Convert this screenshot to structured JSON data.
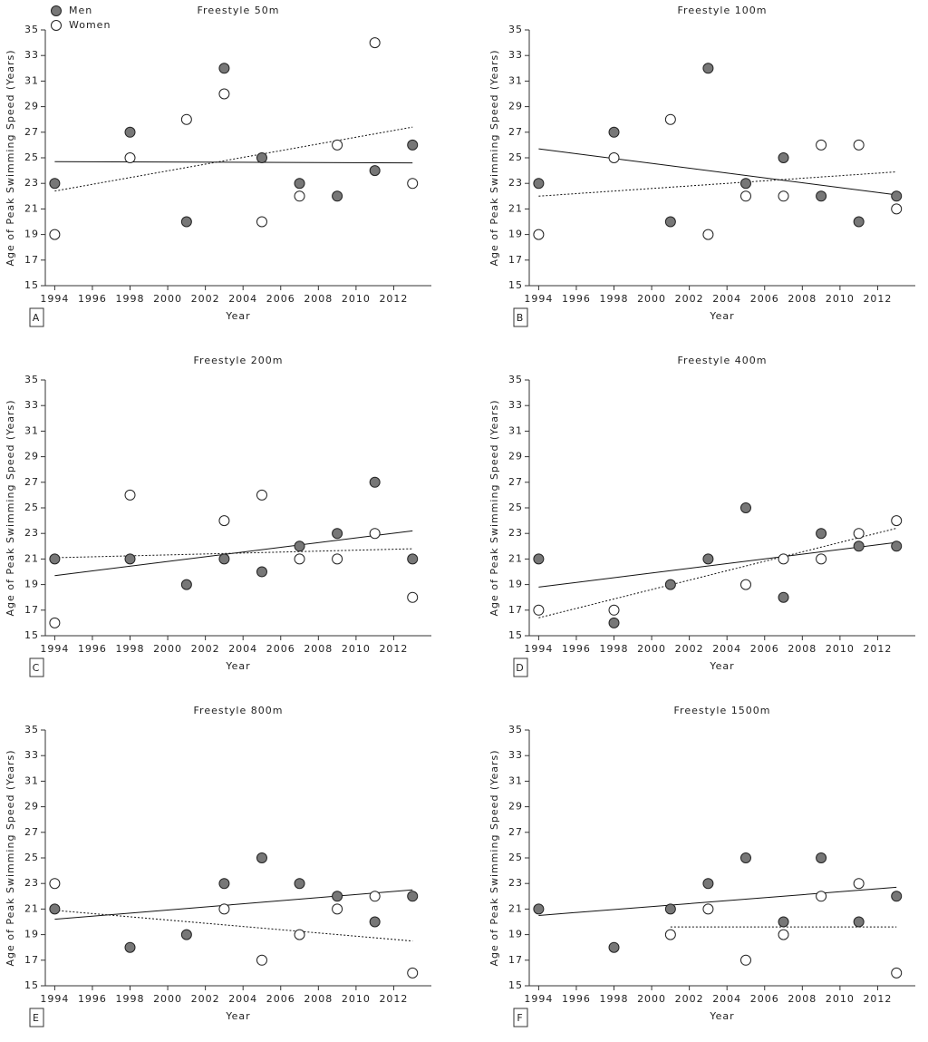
{
  "chart_data": [
    {
      "type": "scatter",
      "title": "Freestyle 50m",
      "panel_label": "A",
      "xlabel": "Year",
      "ylabel": "Age of Peak Swimming Speed (Years)",
      "x": [
        1994,
        1998,
        2001,
        2003,
        2005,
        2007,
        2009,
        2011,
        2013
      ],
      "xlim": [
        1993.5,
        2014
      ],
      "ylim": [
        15,
        35
      ],
      "xticks": [
        1994,
        1996,
        1998,
        2000,
        2002,
        2004,
        2006,
        2008,
        2010,
        2012
      ],
      "yticks": [
        15,
        17,
        19,
        21,
        23,
        25,
        27,
        29,
        31,
        33,
        35
      ],
      "legend": "top-left",
      "series": [
        {
          "name": "Men",
          "color": "#777777",
          "values": [
            23,
            27,
            20,
            32,
            25,
            23,
            22,
            24,
            26
          ],
          "dash": "solid",
          "trend": {
            "x": [
              1994,
              2013
            ],
            "values": [
              24.7,
              24.6
            ]
          }
        },
        {
          "name": "Women",
          "color": "#ffffff",
          "values": [
            19,
            25,
            28,
            30,
            20,
            22,
            26,
            34,
            23
          ],
          "dash": "dotted",
          "trend": {
            "x": [
              1994,
              2013
            ],
            "values": [
              22.4,
              27.4
            ]
          }
        }
      ]
    },
    {
      "type": "scatter",
      "title": "Freestyle 100m",
      "panel_label": "B",
      "xlabel": "Year",
      "ylabel": "Age of Peak Swimming Speed (Years)",
      "x": [
        1994,
        1998,
        2001,
        2003,
        2005,
        2007,
        2009,
        2011,
        2013
      ],
      "xlim": [
        1993.5,
        2014
      ],
      "ylim": [
        15,
        35
      ],
      "xticks": [
        1994,
        1996,
        1998,
        2000,
        2002,
        2004,
        2006,
        2008,
        2010,
        2012
      ],
      "yticks": [
        15,
        17,
        19,
        21,
        23,
        25,
        27,
        29,
        31,
        33,
        35
      ],
      "series": [
        {
          "color": "#777777",
          "values": [
            23,
            27,
            20,
            32,
            23,
            25,
            22,
            20,
            22
          ],
          "dash": "solid",
          "trend": {
            "x": [
              1994,
              2013
            ],
            "values": [
              25.7,
              22.1
            ]
          }
        },
        {
          "color": "#ffffff",
          "values": [
            19,
            25,
            28,
            19,
            22,
            22,
            26,
            26,
            21
          ],
          "dash": "dotted",
          "trend": {
            "x": [
              1994,
              2013
            ],
            "values": [
              22,
              23.9
            ]
          }
        }
      ]
    },
    {
      "type": "scatter",
      "title": "Freestyle 200m",
      "panel_label": "C",
      "xlabel": "Year",
      "ylabel": "Age of Peak Swimming Speed (Years)",
      "x": [
        1994,
        1998,
        2001,
        2003,
        2005,
        2007,
        2009,
        2011,
        2013
      ],
      "xlim": [
        1993.5,
        2014
      ],
      "ylim": [
        15,
        35
      ],
      "xticks": [
        1994,
        1996,
        1998,
        2000,
        2002,
        2004,
        2006,
        2008,
        2010,
        2012
      ],
      "yticks": [
        15,
        17,
        19,
        21,
        23,
        25,
        27,
        29,
        31,
        33,
        35
      ],
      "series": [
        {
          "color": "#777777",
          "values": [
            21,
            21,
            19,
            21,
            20,
            22,
            23,
            27,
            21
          ],
          "dash": "solid",
          "trend": {
            "x": [
              1994,
              2013
            ],
            "values": [
              19.7,
              23.2
            ]
          }
        },
        {
          "color": "#ffffff",
          "values": [
            16,
            26,
            null,
            24,
            26,
            21,
            21,
            23,
            18
          ],
          "dash": "dotted",
          "trend": {
            "x": [
              1994,
              2013
            ],
            "values": [
              21.1,
              21.8
            ]
          }
        }
      ]
    },
    {
      "type": "scatter",
      "title": "Freestyle 400m",
      "panel_label": "D",
      "xlabel": "Year",
      "ylabel": "Age of Peak Swimming Speed (Years)",
      "x": [
        1994,
        1998,
        2001,
        2003,
        2005,
        2007,
        2009,
        2011,
        2013
      ],
      "xlim": [
        1993.5,
        2014
      ],
      "ylim": [
        15,
        35
      ],
      "xticks": [
        1994,
        1996,
        1998,
        2000,
        2002,
        2004,
        2006,
        2008,
        2010,
        2012
      ],
      "yticks": [
        15,
        17,
        19,
        21,
        23,
        25,
        27,
        29,
        31,
        33,
        35
      ],
      "series": [
        {
          "color": "#777777",
          "values": [
            21,
            16,
            19,
            21,
            25,
            18,
            23,
            22,
            22
          ],
          "dash": "solid",
          "trend": {
            "x": [
              1994,
              2013
            ],
            "values": [
              18.8,
              22.3
            ]
          }
        },
        {
          "color": "#ffffff",
          "values": [
            17,
            17,
            null,
            null,
            19,
            21,
            21,
            23,
            24
          ],
          "dash": "dotted",
          "trend": {
            "x": [
              1994,
              2013
            ],
            "values": [
              16.4,
              23.4
            ]
          }
        }
      ]
    },
    {
      "type": "scatter",
      "title": "Freestyle 800m",
      "panel_label": "E",
      "xlabel": "Year",
      "ylabel": "Age of Peak Swimming Speed (Years)",
      "x": [
        1994,
        1998,
        2001,
        2003,
        2005,
        2007,
        2009,
        2011,
        2013
      ],
      "xlim": [
        1993.5,
        2014
      ],
      "ylim": [
        15,
        35
      ],
      "xticks": [
        1994,
        1996,
        1998,
        2000,
        2002,
        2004,
        2006,
        2008,
        2010,
        2012
      ],
      "yticks": [
        15,
        17,
        19,
        21,
        23,
        25,
        27,
        29,
        31,
        33,
        35
      ],
      "series": [
        {
          "color": "#777777",
          "values": [
            21,
            18,
            19,
            23,
            25,
            23,
            22,
            20,
            22
          ],
          "dash": "solid",
          "trend": {
            "x": [
              1994,
              2013
            ],
            "values": [
              20.2,
              22.5
            ]
          }
        },
        {
          "color": "#ffffff",
          "values": [
            23,
            null,
            null,
            21,
            17,
            19,
            21,
            22,
            16
          ],
          "dash": "dotted",
          "trend": {
            "x": [
              1994,
              2013
            ],
            "values": [
              20.9,
              18.5
            ]
          }
        }
      ]
    },
    {
      "type": "scatter",
      "title": "Freestyle 1500m",
      "panel_label": "F",
      "xlabel": "Year",
      "ylabel": "Age of Peak Swimming Speed (Years)",
      "x": [
        1994,
        1998,
        2001,
        2003,
        2005,
        2007,
        2009,
        2011,
        2013
      ],
      "xlim": [
        1993.5,
        2014
      ],
      "ylim": [
        15,
        35
      ],
      "xticks": [
        1994,
        1996,
        1998,
        2000,
        2002,
        2004,
        2006,
        2008,
        2010,
        2012
      ],
      "yticks": [
        15,
        17,
        19,
        21,
        23,
        25,
        27,
        29,
        31,
        33,
        35
      ],
      "series": [
        {
          "color": "#777777",
          "values": [
            21,
            18,
            21,
            23,
            25,
            20,
            25,
            20,
            22
          ],
          "dash": "solid",
          "trend": {
            "x": [
              1994,
              2013
            ],
            "values": [
              20.5,
              22.7
            ]
          }
        },
        {
          "color": "#ffffff",
          "values": [
            null,
            null,
            19,
            21,
            17,
            19,
            22,
            23,
            16
          ],
          "dash": "dotted",
          "trend": {
            "x": [
              2001,
              2013
            ],
            "values": [
              19.6,
              19.6
            ]
          }
        }
      ]
    }
  ]
}
